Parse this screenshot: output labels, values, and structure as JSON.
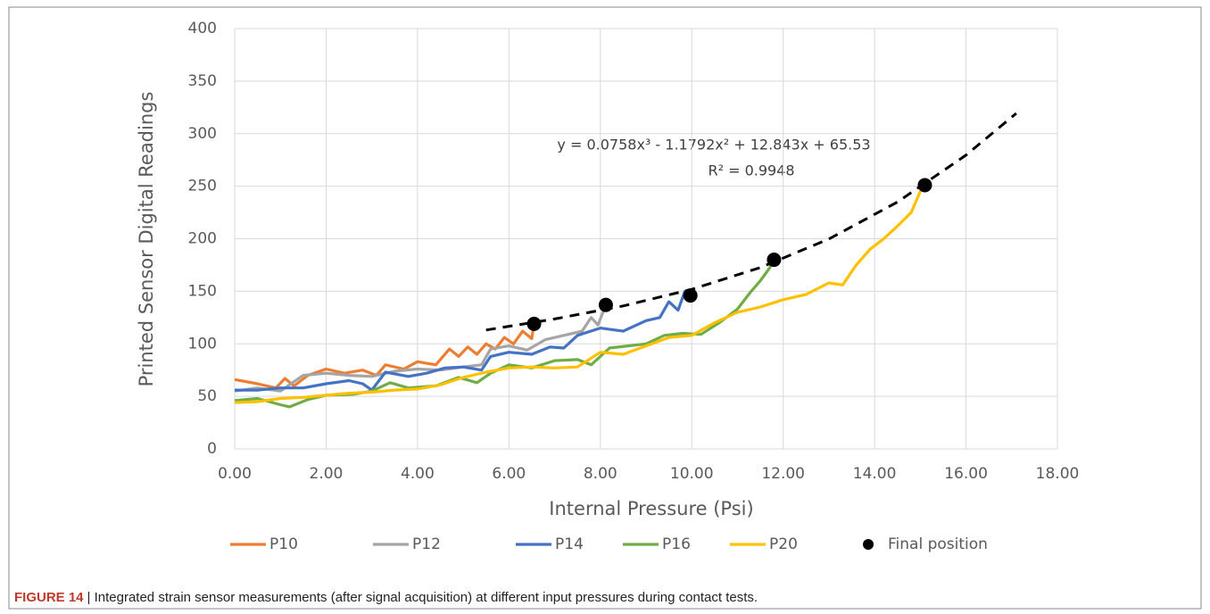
{
  "chart_data": {
    "type": "line",
    "x_label": "Internal Pressure (Psi)",
    "y_label": "Printed Sensor Digital Readings",
    "xlim": [
      0,
      18
    ],
    "ylim": [
      0,
      400
    ],
    "xticks": [
      {
        "value": 0,
        "label": "0.00"
      },
      {
        "value": 2,
        "label": "2.00"
      },
      {
        "value": 4,
        "label": "4.00"
      },
      {
        "value": 6,
        "label": "6.00"
      },
      {
        "value": 8,
        "label": "8.00"
      },
      {
        "value": 10,
        "label": "10.00"
      },
      {
        "value": 12,
        "label": "12.00"
      },
      {
        "value": 14,
        "label": "14.00"
      },
      {
        "value": 16,
        "label": "16.00"
      },
      {
        "value": 18,
        "label": "18.00"
      }
    ],
    "yticks": [
      0,
      50,
      100,
      150,
      200,
      250,
      300,
      350,
      400
    ],
    "grid": true,
    "legend": "bottom",
    "series": [
      {
        "name": "P10",
        "color": "#ED7D31",
        "x": [
          0,
          0.5,
          0.9,
          1.1,
          1.3,
          1.6,
          2.0,
          2.4,
          2.8,
          3.1,
          3.3,
          3.7,
          4.0,
          4.4,
          4.7,
          4.9,
          5.1,
          5.3,
          5.5,
          5.7,
          5.9,
          6.1,
          6.3,
          6.5,
          6.55
        ],
        "values": [
          66,
          62,
          58,
          67,
          60,
          70,
          76,
          72,
          75,
          70,
          80,
          76,
          83,
          80,
          95,
          88,
          97,
          90,
          100,
          95,
          106,
          100,
          112,
          105,
          119
        ]
      },
      {
        "name": "P12",
        "color": "#A5A5A5",
        "x": [
          0,
          0.5,
          1.0,
          1.5,
          2.0,
          2.5,
          3.0,
          3.5,
          4.0,
          4.5,
          5.0,
          5.4,
          5.6,
          6.0,
          6.4,
          6.8,
          7.2,
          7.6,
          7.8,
          7.95,
          8.12
        ],
        "values": [
          55,
          58,
          55,
          70,
          72,
          70,
          69,
          74,
          76,
          75,
          78,
          80,
          95,
          98,
          94,
          104,
          108,
          112,
          125,
          118,
          137
        ]
      },
      {
        "name": "P14",
        "color": "#4472C4",
        "x": [
          0,
          0.5,
          1.0,
          1.5,
          2.0,
          2.5,
          2.8,
          3.0,
          3.3,
          3.8,
          4.2,
          4.6,
          5.0,
          5.4,
          5.6,
          6.0,
          6.5,
          6.9,
          7.2,
          7.5,
          8.0,
          8.5,
          9.0,
          9.3,
          9.5,
          9.7,
          9.85,
          9.97
        ],
        "values": [
          56,
          56,
          58,
          58,
          62,
          65,
          62,
          56,
          73,
          69,
          72,
          77,
          78,
          75,
          88,
          92,
          90,
          97,
          96,
          108,
          115,
          112,
          122,
          125,
          140,
          132,
          150,
          146
        ]
      },
      {
        "name": "P16",
        "color": "#70AD47",
        "x": [
          0,
          0.5,
          1.0,
          1.2,
          1.6,
          2.0,
          2.6,
          3.0,
          3.4,
          3.8,
          4.4,
          4.9,
          5.3,
          5.6,
          6.0,
          6.5,
          7.0,
          7.5,
          7.8,
          8.2,
          8.6,
          9.0,
          9.4,
          9.8,
          10.2,
          10.6,
          11.0,
          11.3,
          11.5,
          11.7,
          11.8
        ],
        "values": [
          46,
          48,
          42,
          40,
          47,
          51,
          52,
          55,
          63,
          58,
          60,
          68,
          63,
          72,
          80,
          77,
          84,
          85,
          80,
          96,
          98,
          100,
          108,
          110,
          109,
          120,
          133,
          150,
          160,
          172,
          180
        ]
      },
      {
        "name": "P20",
        "color": "#FFC000",
        "x": [
          0,
          0.5,
          1.0,
          1.5,
          2.0,
          2.5,
          3.0,
          3.5,
          4.0,
          4.5,
          5.0,
          5.5,
          6.0,
          6.5,
          7.0,
          7.5,
          8.0,
          8.5,
          9.0,
          9.5,
          10.0,
          10.5,
          11.0,
          11.5,
          12.0,
          12.5,
          13.0,
          13.3,
          13.6,
          13.9,
          14.2,
          14.5,
          14.8,
          15.0,
          15.1
        ],
        "values": [
          44,
          45,
          48,
          49,
          51,
          53,
          54,
          56,
          57,
          61,
          68,
          73,
          77,
          78,
          77,
          78,
          92,
          90,
          98,
          106,
          108,
          120,
          130,
          135,
          142,
          147,
          158,
          156,
          175,
          190,
          200,
          212,
          225,
          245,
          251
        ]
      }
    ],
    "final_positions": {
      "name": "Final position",
      "color": "#000000",
      "x": [
        6.55,
        8.12,
        9.97,
        11.8,
        15.1
      ],
      "values": [
        119,
        137,
        146,
        180,
        251
      ]
    },
    "trendline": {
      "color": "#000000",
      "x": [
        5.5,
        7,
        8.5,
        10,
        11.5,
        13,
        14.5,
        16,
        17.1
      ],
      "values": [
        113.1,
        123.65,
        136.05,
        151.84,
        172.55,
        199.74,
        234.9,
        279.6,
        319.3
      ]
    },
    "annotations": [
      "y = 0.0758x³ - 1.1792x² + 12.843x + 65.53",
      "R² = 0.9948"
    ]
  },
  "caption": {
    "label": "FIGURE 14",
    "text": "| Integrated strain sensor measurements (after signal acquisition) at different input pressures during contact tests."
  }
}
